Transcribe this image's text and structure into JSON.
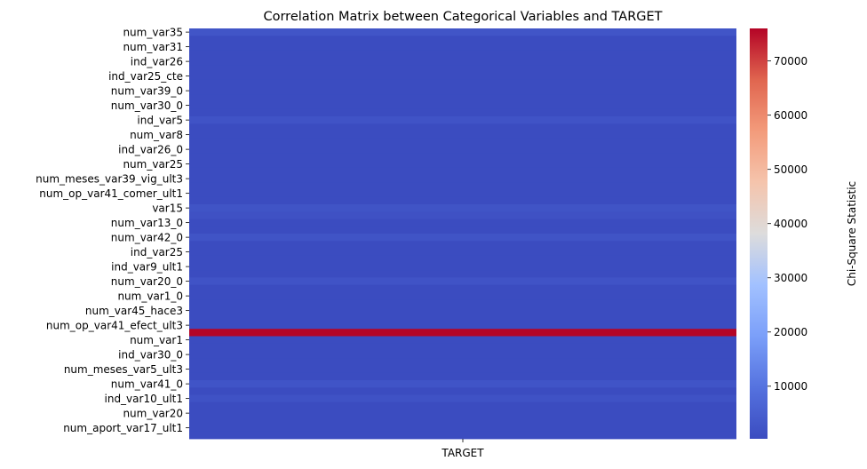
{
  "chart_data": {
    "type": "heatmap",
    "title": "Correlation Matrix between Categorical Variables and TARGET",
    "xlabel": "",
    "ylabel": "",
    "x_categories": [
      "TARGET"
    ],
    "y_tick_labels": [
      "num_var35",
      "num_var31",
      "ind_var26",
      "ind_var25_cte",
      "num_var39_0",
      "num_var30_0",
      "ind_var5",
      "num_var8",
      "ind_var26_0",
      "num_var25",
      "num_meses_var39_vig_ult3",
      "num_op_var41_comer_ult1",
      "var15",
      "num_var13_0",
      "num_var42_0",
      "ind_var25",
      "ind_var9_ult1",
      "num_var20_0",
      "num_var1_0",
      "num_var45_hace3",
      "num_op_var41_efect_ult3",
      "num_var1",
      "ind_var30_0",
      "num_meses_var5_ult3",
      "num_var41_0",
      "ind_var10_ult1",
      "num_var20",
      "num_aport_var17_ult1"
    ],
    "row_count": 56,
    "base_value": 300,
    "highlighted_rows": [
      {
        "row": 0,
        "value": 2500
      },
      {
        "row": 12,
        "value": 2000
      },
      {
        "row": 24,
        "value": 2200
      },
      {
        "row": 25,
        "value": 1600
      },
      {
        "row": 28,
        "value": 2200
      },
      {
        "row": 34,
        "value": 2000
      },
      {
        "row": 41,
        "value": 76000
      },
      {
        "row": 48,
        "value": 2300
      },
      {
        "row": 50,
        "value": 1800
      }
    ],
    "colorbar": {
      "label": "Chi-Square Statistic",
      "colormap": "coolwarm",
      "vmin": 300,
      "vmax": 76000,
      "ticks": [
        10000,
        20000,
        30000,
        40000,
        50000,
        60000,
        70000
      ]
    }
  }
}
